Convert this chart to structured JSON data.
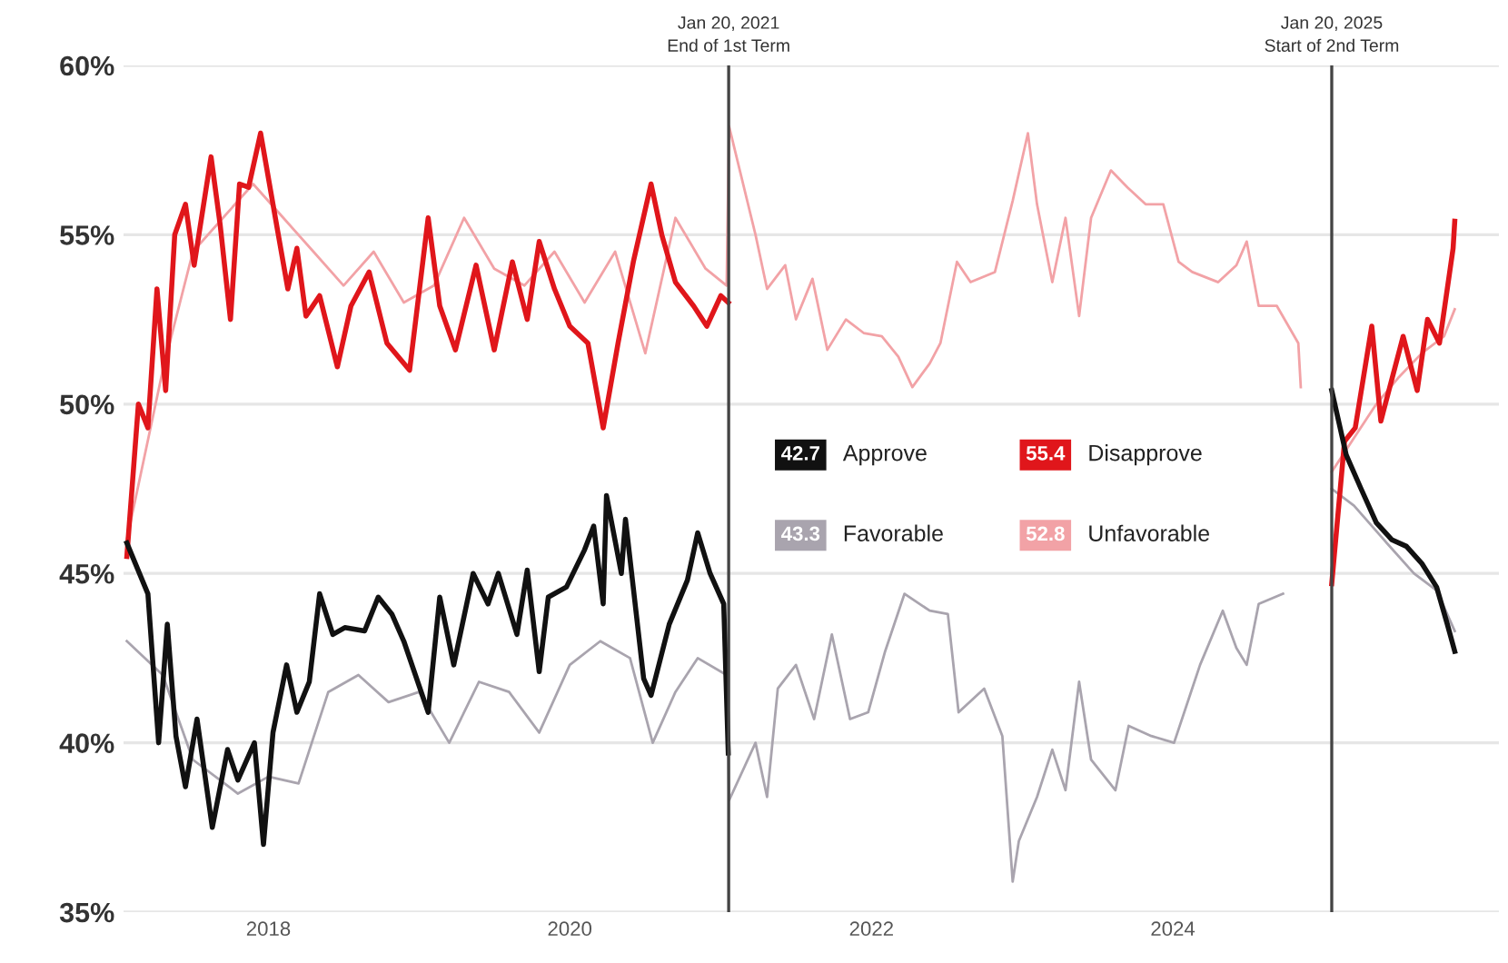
{
  "chart_data": {
    "type": "line",
    "xlim": [
      "2017-01-15",
      "2026-03-01"
    ],
    "xticks": [
      {
        "value": "2018-01-01",
        "label": "2018"
      },
      {
        "value": "2020-01-01",
        "label": "2020"
      },
      {
        "value": "2022-01-01",
        "label": "2022"
      },
      {
        "value": "2024-01-01",
        "label": "2024"
      }
    ],
    "ylim": [
      35,
      60
    ],
    "yticks": [
      {
        "value": 35,
        "label": "35%"
      },
      {
        "value": 40,
        "label": "40%"
      },
      {
        "value": 45,
        "label": "45%"
      },
      {
        "value": 50,
        "label": "50%"
      },
      {
        "value": 55,
        "label": "55%"
      },
      {
        "value": 60,
        "label": "60%"
      }
    ],
    "grid": "y",
    "legend": "center",
    "annotations": [
      "42.7",
      "55.4",
      "43.3",
      "52.8"
    ],
    "ref_lines": [
      {
        "axis": "x",
        "value": "2021-01-20",
        "label": "Jan 20, 2021\nEnd of 1st Term",
        "color": "#444444"
      },
      {
        "axis": "x",
        "value": "2025-01-20",
        "label": "Jan 20, 2025\nStart of 2nd Term",
        "color": "#444444"
      }
    ],
    "series": [
      {
        "name": "Approve",
        "color": "#111111",
        "x": [
          "2017-01-23",
          "2017-03-15",
          "2017-04-10",
          "2017-05-01",
          "2017-05-22",
          "2017-06-14",
          "2017-07-12",
          "2017-08-18",
          "2017-09-24",
          "2017-10-19",
          "2017-11-28",
          "2017-12-20",
          "2018-01-12",
          "2018-02-14",
          "2018-03-11",
          "2018-04-10",
          "2018-05-05",
          "2018-06-06",
          "2018-07-05",
          "2018-08-22",
          "2018-09-24",
          "2018-10-27",
          "2018-11-25",
          "2019-01-23",
          "2019-02-20",
          "2019-03-26",
          "2019-05-12",
          "2019-06-17",
          "2019-07-12",
          "2019-08-26",
          "2019-09-20",
          "2019-10-19",
          "2019-11-10",
          "2019-12-24",
          "2020-02-06",
          "2020-02-28",
          "2020-03-22",
          "2020-03-30",
          "2020-05-05",
          "2020-05-15",
          "2020-06-28",
          "2020-07-16",
          "2020-08-29",
          "2020-10-12",
          "2020-11-06",
          "2020-12-06",
          "2021-01-08",
          "2021-01-19",
          "2023-01-01",
          "2025-01-20",
          "2025-02-24",
          "2025-04-01",
          "2025-05-08",
          "2025-06-14",
          "2025-07-20",
          "2025-08-26",
          "2025-10-01",
          "2025-10-27",
          "2025-11-14"
        ],
        "values": [
          45.9,
          44.4,
          40.0,
          43.5,
          40.2,
          38.7,
          40.7,
          37.5,
          39.8,
          38.9,
          40.0,
          37.0,
          40.3,
          42.3,
          40.9,
          41.8,
          44.4,
          43.2,
          43.4,
          43.3,
          44.3,
          43.8,
          43.0,
          40.9,
          44.3,
          42.3,
          45.0,
          44.1,
          45.0,
          43.2,
          45.1,
          42.1,
          44.3,
          44.6,
          45.7,
          46.4,
          44.1,
          47.3,
          45.0,
          46.6,
          41.9,
          41.4,
          43.5,
          44.8,
          46.2,
          45.0,
          44.1,
          39.7,
          null,
          50.4,
          48.5,
          47.5,
          46.5,
          46.0,
          45.8,
          45.3,
          44.6,
          43.5,
          42.7
        ]
      },
      {
        "name": "Disapprove",
        "color": "#e0161b",
        "x": [
          "2017-01-23",
          "2017-02-20",
          "2017-03-15",
          "2017-04-06",
          "2017-04-27",
          "2017-05-19",
          "2017-06-14",
          "2017-07-05",
          "2017-08-15",
          "2017-09-06",
          "2017-10-01",
          "2017-10-23",
          "2017-11-14",
          "2017-12-13",
          "2018-01-12",
          "2018-02-17",
          "2018-03-11",
          "2018-04-02",
          "2018-05-05",
          "2018-06-17",
          "2018-07-20",
          "2018-09-02",
          "2018-10-15",
          "2018-12-09",
          "2019-01-23",
          "2019-02-20",
          "2019-03-30",
          "2019-05-19",
          "2019-07-02",
          "2019-08-15",
          "2019-09-20",
          "2019-10-19",
          "2019-11-25",
          "2020-01-01",
          "2020-02-14",
          "2020-03-22",
          "2020-04-27",
          "2020-06-03",
          "2020-07-16",
          "2020-08-11",
          "2020-09-13",
          "2020-10-27",
          "2020-11-28",
          "2021-01-01",
          "2021-01-19",
          "2023-01-01",
          "2025-01-20",
          "2025-02-20",
          "2025-03-18",
          "2025-04-27",
          "2025-05-19",
          "2025-07-12",
          "2025-08-15",
          "2025-09-09",
          "2025-10-08",
          "2025-11-10",
          "2025-11-14"
        ],
        "values": [
          45.5,
          50.0,
          49.3,
          53.4,
          50.4,
          55.0,
          55.9,
          54.1,
          57.3,
          55.3,
          52.5,
          56.5,
          56.4,
          58.0,
          55.9,
          53.4,
          54.6,
          52.6,
          53.2,
          51.1,
          52.9,
          53.9,
          51.8,
          51.0,
          55.5,
          52.9,
          51.6,
          54.1,
          51.6,
          54.2,
          52.5,
          54.8,
          53.4,
          52.3,
          51.8,
          49.3,
          51.8,
          54.2,
          56.5,
          55.0,
          53.6,
          52.9,
          52.3,
          53.2,
          53.0,
          null,
          44.7,
          48.9,
          49.3,
          52.3,
          49.5,
          52.0,
          50.4,
          52.5,
          51.8,
          54.6,
          55.4
        ]
      },
      {
        "name": "Favorable",
        "color": "#a9a4ae",
        "x": [
          "2017-01-23",
          "2017-04-20",
          "2017-07-02",
          "2017-10-19",
          "2018-01-01",
          "2018-03-15",
          "2018-05-26",
          "2018-08-07",
          "2018-10-19",
          "2019-01-01",
          "2019-03-15",
          "2019-05-26",
          "2019-08-07",
          "2019-10-19",
          "2020-01-01",
          "2020-03-15",
          "2020-05-26",
          "2020-07-20",
          "2020-09-13",
          "2020-11-06",
          "2021-01-15",
          "2021-01-21",
          "2021-03-26",
          "2021-04-23",
          "2021-05-19",
          "2021-07-02",
          "2021-08-15",
          "2021-09-27",
          "2021-11-10",
          "2021-12-24",
          "2022-02-03",
          "2022-03-22",
          "2022-05-22",
          "2022-07-05",
          "2022-07-31",
          "2022-10-01",
          "2022-11-14",
          "2022-12-09",
          "2022-12-24",
          "2023-02-06",
          "2023-03-15",
          "2023-04-16",
          "2023-05-19",
          "2023-06-17",
          "2023-08-15",
          "2023-09-16",
          "2023-11-10",
          "2024-01-04",
          "2024-03-07",
          "2024-05-01",
          "2024-06-03",
          "2024-06-28",
          "2024-07-27",
          "2024-09-24",
          "2024-12-20",
          "2025-01-20",
          "2025-03-15",
          "2025-05-26",
          "2025-08-07",
          "2025-10-01",
          "2025-11-14"
        ],
        "values": [
          43.0,
          42.0,
          39.5,
          38.5,
          39.0,
          38.8,
          41.5,
          42.0,
          41.2,
          41.5,
          40.0,
          41.8,
          41.5,
          40.3,
          42.3,
          43.0,
          42.5,
          40.0,
          41.5,
          42.5,
          42.0,
          38.3,
          40.0,
          38.4,
          41.6,
          42.3,
          40.7,
          43.2,
          40.7,
          40.9,
          42.7,
          44.4,
          43.9,
          43.8,
          40.9,
          41.6,
          40.2,
          35.9,
          37.1,
          38.4,
          39.8,
          38.6,
          41.8,
          39.5,
          38.6,
          40.5,
          40.2,
          40.0,
          42.3,
          43.9,
          42.8,
          42.3,
          44.1,
          44.4,
          null,
          47.5,
          47.0,
          46.0,
          45.0,
          44.5,
          43.3
        ]
      },
      {
        "name": "Unfavorable",
        "color": "#f2a2a6",
        "x": [
          "2017-01-23",
          "2017-04-20",
          "2017-07-02",
          "2017-09-13",
          "2017-11-25",
          "2018-02-06",
          "2018-04-20",
          "2018-07-02",
          "2018-09-13",
          "2018-11-25",
          "2019-02-06",
          "2019-04-20",
          "2019-07-02",
          "2019-09-13",
          "2019-11-25",
          "2020-02-06",
          "2020-04-20",
          "2020-07-02",
          "2020-09-13",
          "2020-11-25",
          "2021-01-15",
          "2021-01-21",
          "2021-03-26",
          "2021-04-23",
          "2021-06-06",
          "2021-07-02",
          "2021-08-11",
          "2021-09-16",
          "2021-10-31",
          "2021-12-13",
          "2022-01-26",
          "2022-03-07",
          "2022-04-10",
          "2022-05-22",
          "2022-06-17",
          "2022-07-27",
          "2022-08-29",
          "2022-10-27",
          "2022-12-09",
          "2023-01-15",
          "2023-02-06",
          "2023-03-15",
          "2023-04-16",
          "2023-05-19",
          "2023-06-17",
          "2023-08-04",
          "2023-09-13",
          "2023-10-27",
          "2023-12-09",
          "2024-01-15",
          "2024-02-17",
          "2024-04-20",
          "2024-06-03",
          "2024-06-28",
          "2024-07-27",
          "2024-09-09",
          "2024-10-31",
          "2024-11-06",
          "2024-12-20",
          "2025-01-20",
          "2025-03-15",
          "2025-05-08",
          "2025-07-02",
          "2025-08-26",
          "2025-10-19",
          "2025-11-14"
        ],
        "values": [
          46.0,
          51.0,
          54.5,
          55.5,
          56.5,
          55.5,
          54.5,
          53.5,
          54.5,
          53.0,
          53.5,
          55.5,
          54.0,
          53.5,
          54.5,
          53.0,
          54.5,
          51.5,
          55.5,
          54.0,
          53.5,
          58.2,
          55.0,
          53.4,
          54.1,
          52.5,
          53.7,
          51.6,
          52.5,
          52.1,
          52.0,
          51.4,
          50.5,
          51.2,
          51.8,
          54.2,
          53.6,
          53.9,
          56.0,
          58.0,
          55.9,
          53.6,
          55.5,
          52.6,
          55.5,
          56.9,
          56.4,
          55.9,
          55.9,
          54.2,
          53.9,
          53.6,
          54.1,
          54.8,
          52.9,
          52.9,
          51.8,
          50.5,
          null,
          48.0,
          49.0,
          50.0,
          50.8,
          51.5,
          52.0,
          52.8
        ]
      }
    ]
  }
}
